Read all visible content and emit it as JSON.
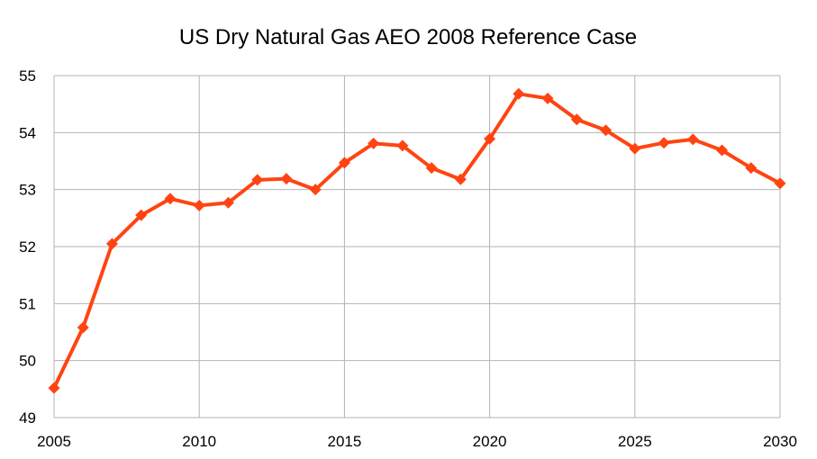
{
  "chart_data": {
    "type": "line",
    "title": "US Dry Natural Gas AEO 2008 Reference Case",
    "xlabel": "",
    "ylabel": "",
    "xlim": [
      2005,
      2030
    ],
    "ylim": [
      49,
      55
    ],
    "x_ticks": [
      2005,
      2010,
      2015,
      2020,
      2025,
      2030
    ],
    "y_ticks": [
      49,
      50,
      51,
      52,
      53,
      54,
      55
    ],
    "grid": true,
    "legend": "none",
    "colors": {
      "line": "#ff4411",
      "grid": "#b3b3b3"
    },
    "series": [
      {
        "x": [
          2005,
          2006,
          2007,
          2008,
          2009,
          2010,
          2011,
          2012,
          2013,
          2014,
          2015,
          2016,
          2017,
          2018,
          2019,
          2020,
          2021,
          2022,
          2023,
          2024,
          2025,
          2026,
          2027,
          2028,
          2029,
          2030
        ],
        "values": [
          49.52,
          50.58,
          52.05,
          52.55,
          52.84,
          52.72,
          52.77,
          53.17,
          53.19,
          53.0,
          53.47,
          53.81,
          53.77,
          53.38,
          53.18,
          53.89,
          54.68,
          54.6,
          54.23,
          54.04,
          53.72,
          53.82,
          53.88,
          53.69,
          53.38,
          53.11
        ]
      }
    ]
  }
}
